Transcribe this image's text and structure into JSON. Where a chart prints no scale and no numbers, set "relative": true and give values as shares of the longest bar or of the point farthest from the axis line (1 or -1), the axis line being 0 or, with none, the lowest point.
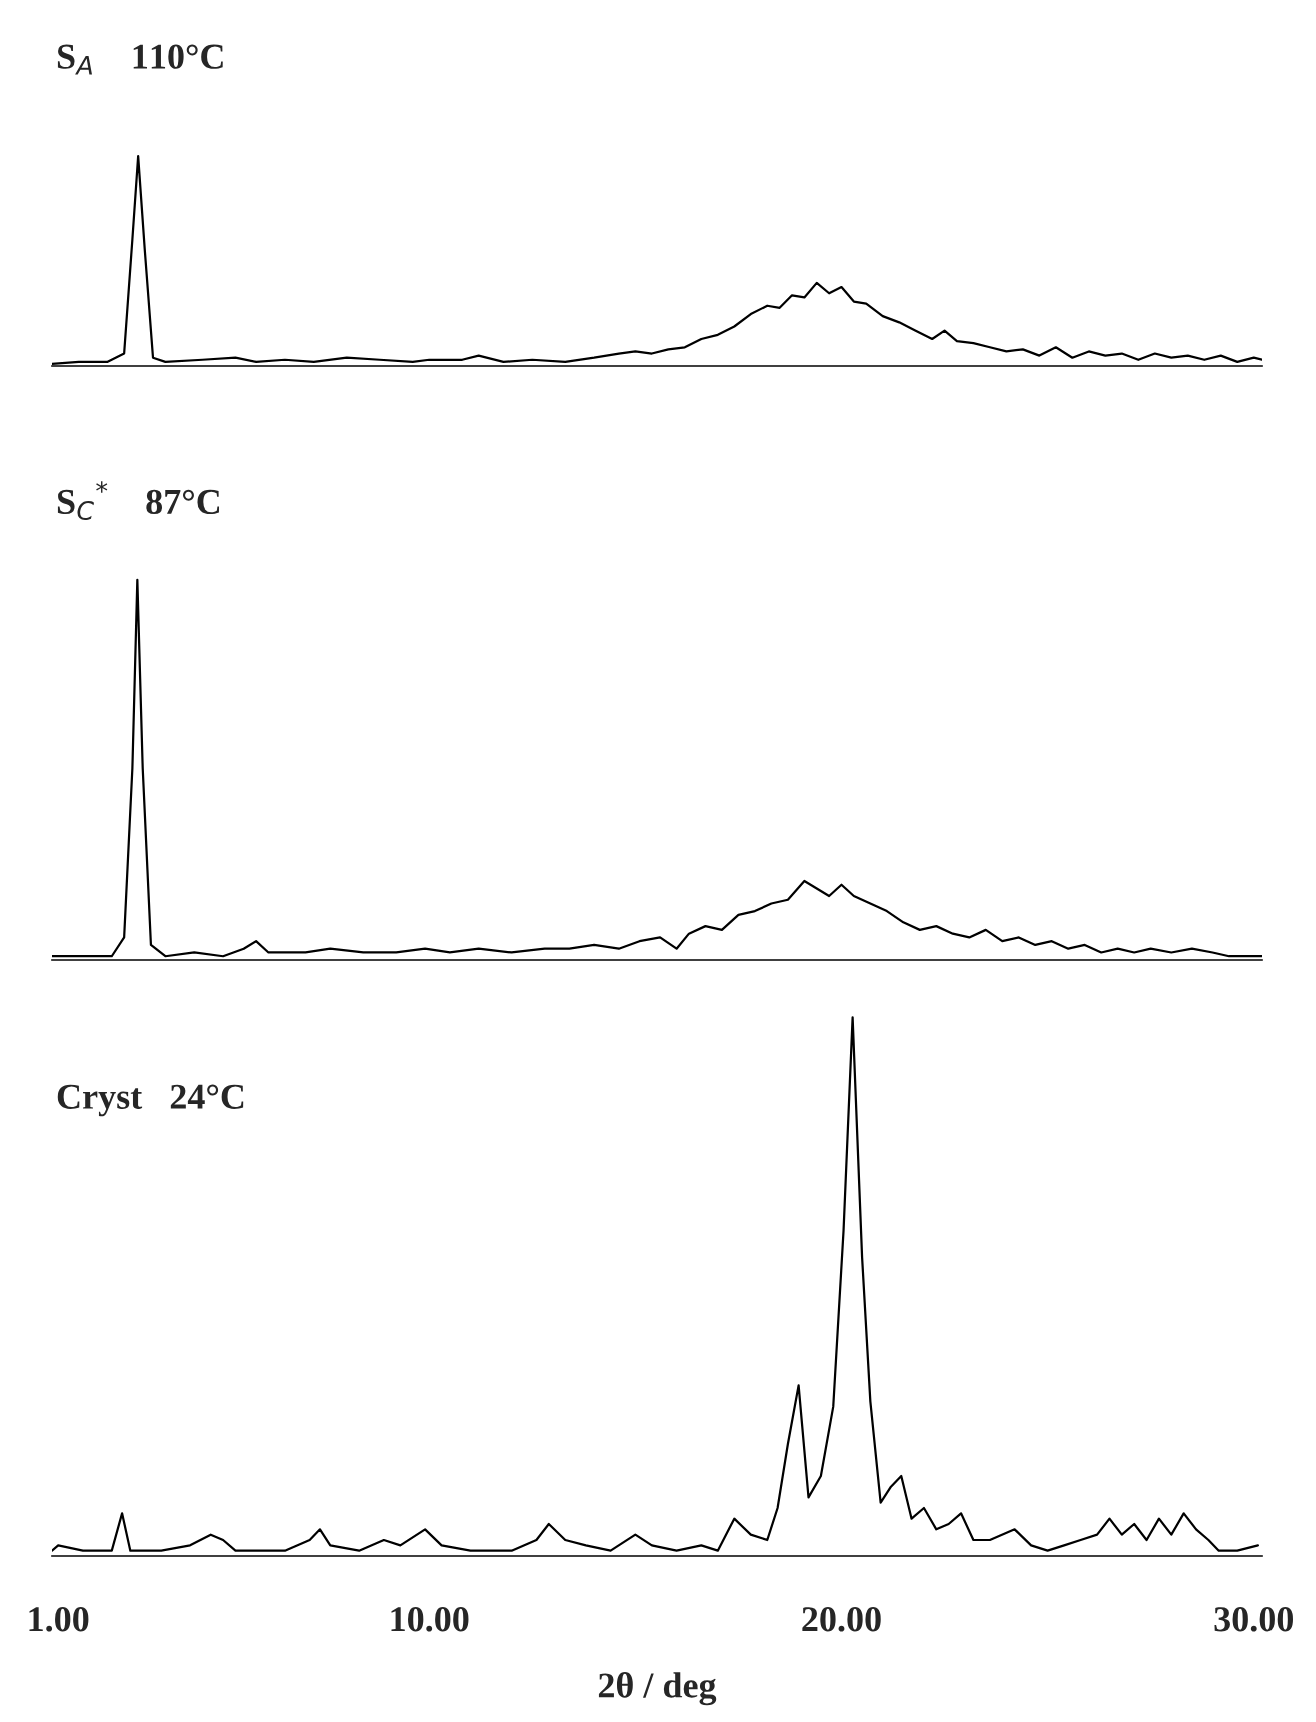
{
  "chart_data": [
    {
      "type": "line",
      "title": "S$_{A}$    110°C",
      "relative": true,
      "tick_labels": false,
      "xlim": [
        0.85,
        30.2
      ],
      "x": [
        0.85,
        1.5,
        2.2,
        2.6,
        2.8,
        2.94,
        3.1,
        3.3,
        3.6,
        4.5,
        5.3,
        5.8,
        6.5,
        7.2,
        8.0,
        8.8,
        9.6,
        10.0,
        10.8,
        11.2,
        11.8,
        12.5,
        13.3,
        14.0,
        14.6,
        15.0,
        15.4,
        15.8,
        16.2,
        16.6,
        17.0,
        17.4,
        17.8,
        18.2,
        18.5,
        18.8,
        19.1,
        19.4,
        19.7,
        20.0,
        20.3,
        20.6,
        21.0,
        21.4,
        21.8,
        22.2,
        22.5,
        22.8,
        23.2,
        23.6,
        24.0,
        24.4,
        24.8,
        25.2,
        25.6,
        26.0,
        26.4,
        26.8,
        27.2,
        27.6,
        28.0,
        28.4,
        28.8,
        29.2,
        29.6,
        30.0,
        30.2
      ],
      "series": [
        {
          "color": "#000000",
          "values": [
            0.0,
            0.01,
            0.01,
            0.05,
            0.6,
            1.0,
            0.55,
            0.03,
            0.01,
            0.02,
            0.03,
            0.01,
            0.02,
            0.01,
            0.03,
            0.02,
            0.01,
            0.02,
            0.02,
            0.04,
            0.01,
            0.02,
            0.01,
            0.03,
            0.05,
            0.06,
            0.05,
            0.07,
            0.08,
            0.12,
            0.14,
            0.18,
            0.24,
            0.28,
            0.27,
            0.33,
            0.32,
            0.39,
            0.34,
            0.37,
            0.3,
            0.29,
            0.23,
            0.2,
            0.16,
            0.12,
            0.16,
            0.11,
            0.1,
            0.08,
            0.06,
            0.07,
            0.04,
            0.08,
            0.03,
            0.06,
            0.04,
            0.05,
            0.02,
            0.05,
            0.03,
            0.04,
            0.02,
            0.04,
            0.01,
            0.03,
            0.02
          ]
        }
      ]
    },
    {
      "type": "line",
      "title": "S$_{C}$$^{*}$    87°C",
      "relative": true,
      "tick_labels": false,
      "xlim": [
        0.85,
        30.2
      ],
      "x": [
        0.85,
        1.5,
        2.3,
        2.6,
        2.8,
        2.92,
        3.05,
        3.25,
        3.6,
        4.3,
        5.0,
        5.5,
        5.8,
        6.1,
        7.0,
        7.6,
        8.4,
        9.2,
        9.9,
        10.5,
        11.2,
        12.0,
        12.8,
        13.4,
        14.0,
        14.6,
        15.1,
        15.6,
        16.0,
        16.3,
        16.7,
        17.1,
        17.5,
        17.9,
        18.3,
        18.7,
        19.1,
        19.4,
        19.7,
        20.0,
        20.3,
        20.7,
        21.1,
        21.5,
        21.9,
        22.3,
        22.7,
        23.1,
        23.5,
        23.9,
        24.3,
        24.7,
        25.1,
        25.5,
        25.9,
        26.3,
        26.7,
        27.1,
        27.5,
        28.0,
        28.5,
        29.0,
        29.4,
        30.2
      ],
      "series": [
        {
          "color": "#000000",
          "values": [
            0.0,
            0.0,
            0.0,
            0.05,
            0.5,
            1.0,
            0.5,
            0.03,
            0.0,
            0.01,
            0.0,
            0.02,
            0.04,
            0.01,
            0.01,
            0.02,
            0.01,
            0.01,
            0.02,
            0.01,
            0.02,
            0.01,
            0.02,
            0.02,
            0.03,
            0.02,
            0.04,
            0.05,
            0.02,
            0.06,
            0.08,
            0.07,
            0.11,
            0.12,
            0.14,
            0.15,
            0.2,
            0.18,
            0.16,
            0.19,
            0.16,
            0.14,
            0.12,
            0.09,
            0.07,
            0.08,
            0.06,
            0.05,
            0.07,
            0.04,
            0.05,
            0.03,
            0.04,
            0.02,
            0.03,
            0.01,
            0.02,
            0.01,
            0.02,
            0.01,
            0.02,
            0.01,
            0.0,
            0.0
          ]
        }
      ]
    },
    {
      "type": "line",
      "title": "Cryst   24°C",
      "xlabel": "2θ / deg",
      "relative": true,
      "tick_labels": "x",
      "xlim": [
        0.85,
        30.2
      ],
      "xticks": [
        {
          "value": 1,
          "label": "1.00"
        },
        {
          "value": 10,
          "label": "10.00"
        },
        {
          "value": 20,
          "label": "20.00"
        },
        {
          "value": 30,
          "label": "30.00"
        }
      ],
      "x": [
        0.85,
        1.0,
        1.6,
        2.3,
        2.55,
        2.75,
        3.5,
        4.2,
        4.7,
        5.0,
        5.3,
        6.5,
        7.1,
        7.35,
        7.6,
        8.3,
        8.9,
        9.3,
        9.9,
        10.3,
        11.0,
        12.0,
        12.6,
        12.9,
        13.3,
        13.8,
        14.4,
        15.0,
        15.4,
        16.0,
        16.6,
        17.0,
        17.4,
        17.8,
        18.2,
        18.45,
        18.7,
        18.96,
        19.2,
        19.5,
        19.8,
        20.05,
        20.27,
        20.5,
        20.7,
        20.95,
        21.2,
        21.45,
        21.7,
        22.0,
        22.3,
        22.6,
        22.9,
        23.2,
        23.6,
        24.2,
        24.6,
        25.0,
        25.4,
        25.8,
        26.2,
        26.5,
        26.8,
        27.1,
        27.4,
        27.7,
        28.0,
        28.3,
        28.6,
        28.9,
        29.15,
        29.6,
        30.1
      ],
      "series": [
        {
          "color": "#000000",
          "values": [
            0.0,
            0.01,
            0.0,
            0.0,
            0.07,
            0.0,
            0.0,
            0.01,
            0.03,
            0.02,
            0.0,
            0.0,
            0.02,
            0.04,
            0.01,
            0.0,
            0.02,
            0.01,
            0.04,
            0.01,
            0.0,
            0.0,
            0.02,
            0.05,
            0.02,
            0.01,
            0.0,
            0.03,
            0.01,
            0.0,
            0.01,
            0.0,
            0.06,
            0.03,
            0.02,
            0.08,
            0.2,
            0.31,
            0.1,
            0.14,
            0.27,
            0.6,
            1.0,
            0.55,
            0.28,
            0.09,
            0.12,
            0.14,
            0.06,
            0.08,
            0.04,
            0.05,
            0.07,
            0.02,
            0.02,
            0.04,
            0.01,
            0.0,
            0.01,
            0.02,
            0.03,
            0.06,
            0.03,
            0.05,
            0.02,
            0.06,
            0.03,
            0.07,
            0.04,
            0.02,
            0.0,
            0.0,
            0.01
          ]
        }
      ]
    }
  ]
}
